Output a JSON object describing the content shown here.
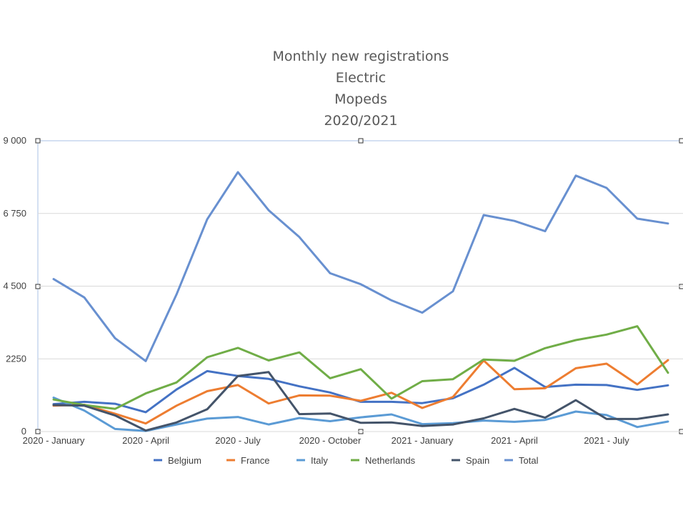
{
  "chart_data": {
    "type": "line",
    "title": [
      "Monthly new registrations",
      "Electric",
      "Mopeds",
      "2020/2021"
    ],
    "xlabel": "",
    "ylabel": "",
    "ylim": [
      0,
      9000
    ],
    "yticks": [
      "0",
      "2250",
      "4 500",
      "6 750",
      "9 000"
    ],
    "y_tick_values": [
      0,
      2250,
      4500,
      6750,
      9000
    ],
    "x_tick_labels": [
      "2020 - January",
      "2020 - April",
      "2020 - July",
      "2020 - October",
      "2021 - January",
      "2021 - April",
      "2021 - July"
    ],
    "x_tick_indices": [
      0,
      3,
      6,
      9,
      12,
      15,
      18
    ],
    "categories": [
      "2020-01",
      "2020-02",
      "2020-03",
      "2020-04",
      "2020-05",
      "2020-06",
      "2020-07",
      "2020-08",
      "2020-09",
      "2020-10",
      "2020-11",
      "2020-12",
      "2021-01",
      "2021-02",
      "2021-03",
      "2021-04",
      "2021-05",
      "2021-06",
      "2021-07",
      "2021-08",
      "2021-09"
    ],
    "grid": true,
    "legend_position": "bottom",
    "series": [
      {
        "name": "Belgium",
        "color": "#4472C4",
        "values": [
          850,
          920,
          860,
          600,
          1300,
          1870,
          1720,
          1630,
          1400,
          1210,
          920,
          920,
          880,
          1030,
          1450,
          1970,
          1380,
          1450,
          1440,
          1290,
          1430
        ]
      },
      {
        "name": "France",
        "color": "#ED7D31",
        "values": [
          800,
          830,
          550,
          250,
          800,
          1250,
          1440,
          870,
          1120,
          1110,
          950,
          1200,
          730,
          1070,
          2200,
          1310,
          1340,
          1960,
          2100,
          1460,
          2210
        ]
      },
      {
        "name": "Italy",
        "color": "#5B9BD5",
        "values": [
          1050,
          650,
          80,
          20,
          220,
          400,
          450,
          220,
          420,
          320,
          440,
          530,
          230,
          260,
          340,
          300,
          360,
          620,
          510,
          140,
          310
        ]
      },
      {
        "name": "Netherlands",
        "color": "#70AD47",
        "values": [
          990,
          820,
          700,
          1180,
          1520,
          2300,
          2590,
          2200,
          2450,
          1650,
          1930,
          1020,
          1560,
          1620,
          2230,
          2190,
          2580,
          2830,
          3000,
          3260,
          1820
        ]
      },
      {
        "name": "Spain",
        "color": "#44546A",
        "values": [
          820,
          800,
          500,
          30,
          280,
          690,
          1720,
          1840,
          540,
          560,
          270,
          280,
          170,
          220,
          410,
          700,
          430,
          970,
          390,
          390,
          530
        ]
      },
      {
        "name": "Total",
        "color": "#6890D0",
        "values": [
          4720,
          4150,
          2890,
          2180,
          4240,
          6570,
          8030,
          6850,
          6020,
          4900,
          4560,
          4060,
          3680,
          4340,
          6700,
          6520,
          6200,
          7920,
          7540,
          6590,
          6440
        ]
      }
    ]
  }
}
